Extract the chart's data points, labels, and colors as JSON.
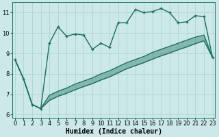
{
  "xlabel": "Humidex (Indice chaleur)",
  "bg_color": "#cce8e8",
  "grid_color": "#aed4d4",
  "line_color": "#1a6e5e",
  "x_pts": [
    0,
    1,
    2,
    3,
    4,
    5,
    6,
    7,
    8,
    9,
    10,
    11,
    12,
    13,
    14,
    15,
    16,
    17,
    18,
    19,
    20,
    21,
    22,
    23
  ],
  "y_upper": [
    8.7,
    7.75,
    6.5,
    6.3,
    9.5,
    10.3,
    9.85,
    9.95,
    9.9,
    9.2,
    9.5,
    9.3,
    10.5,
    10.5,
    11.15,
    11.0,
    11.05,
    11.2,
    11.0,
    10.5,
    10.55,
    10.85,
    10.8,
    8.8
  ],
  "y_mid": [
    8.7,
    7.75,
    6.5,
    6.3,
    6.95,
    7.15,
    7.3,
    7.5,
    7.65,
    7.8,
    8.0,
    8.15,
    8.35,
    8.55,
    8.7,
    8.85,
    9.05,
    9.2,
    9.35,
    9.5,
    9.65,
    9.8,
    9.9,
    8.8
  ],
  "y_low": [
    8.7,
    7.75,
    6.5,
    6.3,
    6.7,
    6.9,
    7.05,
    7.22,
    7.38,
    7.52,
    7.7,
    7.85,
    8.05,
    8.25,
    8.4,
    8.55,
    8.72,
    8.88,
    9.02,
    9.18,
    9.32,
    9.48,
    9.62,
    8.8
  ],
  "xlim": [
    -0.3,
    23.3
  ],
  "ylim": [
    5.85,
    11.5
  ],
  "yticks": [
    6,
    7,
    8,
    9,
    10,
    11
  ],
  "xticks": [
    0,
    1,
    2,
    3,
    4,
    5,
    6,
    7,
    8,
    9,
    10,
    11,
    12,
    13,
    14,
    15,
    16,
    17,
    18,
    19,
    20,
    21,
    22,
    23
  ],
  "markersize": 3.5,
  "linewidth": 1.0,
  "xlabel_fontsize": 7,
  "tick_fontsize": 6
}
